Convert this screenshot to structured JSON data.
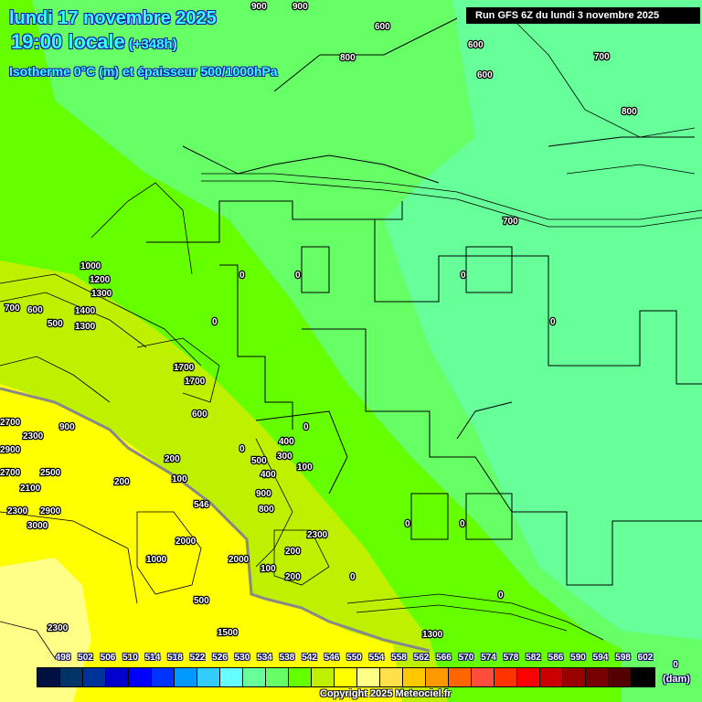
{
  "header": {
    "date": "lundi 17 novembre 2025",
    "time": "19:00 locale",
    "lead": "(+348h)",
    "parameter": "Isotherme 0°C (m) et épaisseur 500/1000hPa",
    "run": "Run GFS 6Z du lundi 3 novembre 2025"
  },
  "map": {
    "zone_colors": {
      "lime": "#66ff00",
      "green": "#66ff66",
      "teal": "#66ff99",
      "yellow_green": "#bff000",
      "yellow": "#ffff00",
      "light_yellow": "#ffff88"
    },
    "thickness_line_label": "546",
    "contour_labels": [
      "900",
      "900",
      "600",
      "800",
      "600",
      "600",
      "700",
      "800",
      "700",
      "0",
      "0",
      "0",
      "0",
      "0",
      "1000",
      "1200",
      "1300",
      "700",
      "600",
      "500",
      "1400",
      "1300",
      "1700",
      "1700",
      "600",
      "2700",
      "2300",
      "2900",
      "2700",
      "2100",
      "2500",
      "900",
      "200",
      "200",
      "100",
      "400",
      "300",
      "500",
      "100",
      "400",
      "900",
      "800",
      "200",
      "2000",
      "1000",
      "2000",
      "100",
      "2300",
      "200",
      "0",
      "0",
      "0",
      "0",
      "0",
      "2300",
      "500",
      "0",
      "1500",
      "2300",
      "1300",
      "2900",
      "3000"
    ]
  },
  "legend": {
    "labels": [
      "498",
      "502",
      "506",
      "510",
      "514",
      "518",
      "522",
      "526",
      "530",
      "534",
      "538",
      "542",
      "546",
      "550",
      "554",
      "558",
      "562",
      "566",
      "570",
      "574",
      "578",
      "582",
      "586",
      "590",
      "594",
      "598",
      "602"
    ],
    "colors": [
      "#001040",
      "#003366",
      "#003399",
      "#0000cc",
      "#0000ff",
      "#0033ff",
      "#0099ff",
      "#33ccff",
      "#66ffff",
      "#66ff99",
      "#66ff66",
      "#66ff00",
      "#bff000",
      "#ffff00",
      "#ffff88",
      "#ffe04a",
      "#ffc800",
      "#ff9900",
      "#ff6600",
      "#ff4d3d",
      "#ff3300",
      "#ff0000",
      "#cc0000",
      "#990000",
      "#770000",
      "#550000",
      "#000000"
    ],
    "zero": "0",
    "unit": "(dam)"
  },
  "copyright": "Copyright 2025 Meteociel.fr"
}
